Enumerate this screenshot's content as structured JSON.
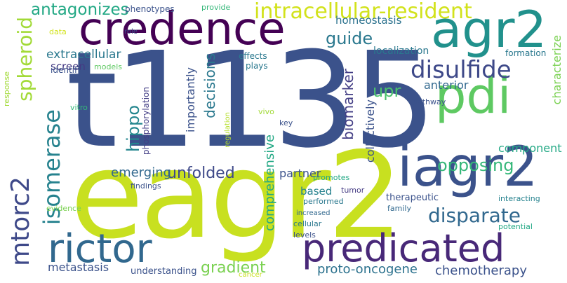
{
  "words": [
    {
      "text": "t1135",
      "color": "#3b528b"
    },
    {
      "text": "eagr2",
      "color": "#c8e020"
    },
    {
      "text": "credence",
      "color": "#440154"
    },
    {
      "text": "agr2",
      "color": "#21918c"
    },
    {
      "text": "pdi",
      "color": "#5ec962"
    },
    {
      "text": "iagr2",
      "color": "#3b528b"
    },
    {
      "text": "predicated",
      "color": "#482878"
    },
    {
      "text": "rictor",
      "color": "#31688e"
    },
    {
      "text": "mtorc2",
      "color": "#3e4989"
    },
    {
      "text": "spheroid",
      "color": "#a2da37"
    },
    {
      "text": "isomerase",
      "color": "#26828e"
    },
    {
      "text": "disulfide",
      "color": "#3e4989"
    },
    {
      "text": "intracellular-resident",
      "color": "#d2e21b"
    },
    {
      "text": "antagonizes",
      "color": "#22a884"
    },
    {
      "text": "hippo",
      "color": "#24868e"
    },
    {
      "text": "unfolded",
      "color": "#3e4989"
    },
    {
      "text": "disparate",
      "color": "#31688e"
    },
    {
      "text": "opposing",
      "color": "#35b779"
    },
    {
      "text": "guide",
      "color": "#2a788e"
    },
    {
      "text": "upr",
      "color": "#4ac16d"
    },
    {
      "text": "gradient",
      "color": "#7ad151"
    },
    {
      "text": "comprehensive",
      "color": "#22a884"
    },
    {
      "text": "biomarker",
      "color": "#433e85"
    },
    {
      "text": "proto-oncogene",
      "color": "#2c728e"
    },
    {
      "text": "chemotherapy",
      "color": "#3b528b"
    },
    {
      "text": "extracellular",
      "color": "#2a788e"
    },
    {
      "text": "decisions",
      "color": "#2a788e"
    },
    {
      "text": "emerging",
      "color": "#31688e"
    },
    {
      "text": "screen",
      "color": "#443a83"
    },
    {
      "text": "partner",
      "color": "#3b528b"
    },
    {
      "text": "homeostasis",
      "color": "#2c728e"
    },
    {
      "text": "importantly",
      "color": "#3b528b"
    },
    {
      "text": "anterior",
      "color": "#31688e"
    },
    {
      "text": "component",
      "color": "#22a884"
    },
    {
      "text": "collectively",
      "color": "#3b528b"
    },
    {
      "text": "localization",
      "color": "#2a788e"
    },
    {
      "text": "characterize",
      "color": "#7ad151"
    },
    {
      "text": "metastasis",
      "color": "#3b528b"
    },
    {
      "text": "based",
      "color": "#26828e"
    },
    {
      "text": "therapeutic",
      "color": "#3b528b"
    },
    {
      "text": "understanding",
      "color": "#3b528b"
    },
    {
      "text": "identify",
      "color": "#3b528b"
    },
    {
      "text": "phenotypes",
      "color": "#3b528b"
    },
    {
      "text": "provide",
      "color": "#35b779"
    },
    {
      "text": "data",
      "color": "#d2e21b"
    },
    {
      "text": "role",
      "color": "#3b528b"
    },
    {
      "text": "effects",
      "color": "#2a788e"
    },
    {
      "text": "models",
      "color": "#5ec962"
    },
    {
      "text": "plays",
      "color": "#2a788e"
    },
    {
      "text": "formation",
      "color": "#2a788e"
    },
    {
      "text": "response",
      "color": "#a2da37"
    },
    {
      "text": "vitro",
      "color": "#35b779"
    },
    {
      "text": "phosphorylation",
      "color": "#433e85"
    },
    {
      "text": "regulation",
      "color": "#b5de2b"
    },
    {
      "text": "vivo",
      "color": "#a2da37"
    },
    {
      "text": "key",
      "color": "#3b528b"
    },
    {
      "text": "pathway",
      "color": "#3b528b"
    },
    {
      "text": "interacting",
      "color": "#26828e"
    },
    {
      "text": "findings",
      "color": "#3b528b"
    },
    {
      "text": "tumor",
      "color": "#443a83"
    },
    {
      "text": "promotes",
      "color": "#22a884"
    },
    {
      "text": "performed",
      "color": "#2a788e"
    },
    {
      "text": "family",
      "color": "#31688e"
    },
    {
      "text": "evidence",
      "color": "#7ad151"
    },
    {
      "text": "increased",
      "color": "#31688e"
    },
    {
      "text": "cellular",
      "color": "#2a788e"
    },
    {
      "text": "potential",
      "color": "#22a884"
    },
    {
      "text": "levels",
      "color": "#3b528b"
    },
    {
      "text": "cancer",
      "color": "#c8e020"
    }
  ]
}
